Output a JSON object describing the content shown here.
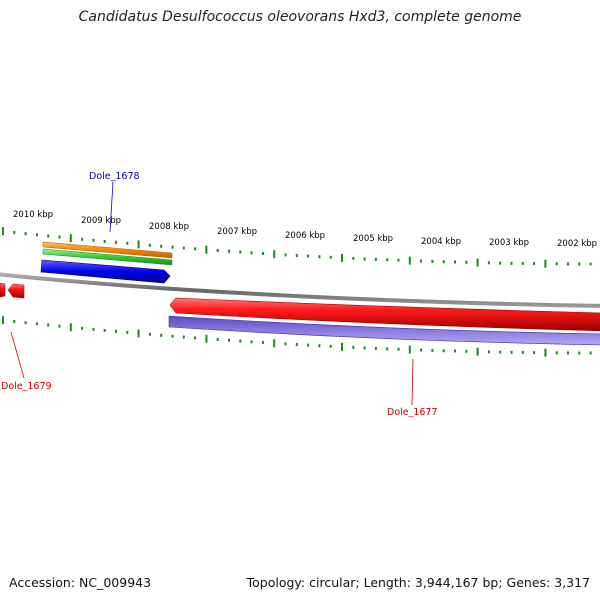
{
  "title": "Candidatus Desulfococcus oleovorans Hxd3, complete genome",
  "scale_labels": [
    "2010 kbp",
    "2009 kbp",
    "2008 kbp",
    "2007 kbp",
    "2006 kbp",
    "2005 kbp",
    "2004 kbp",
    "2003 kbp",
    "2002 kbp"
  ],
  "genes": [
    {
      "name": "Dole_1678",
      "color": "#0000cc"
    },
    {
      "name": "Dole_1679",
      "color": "#cc0000"
    },
    {
      "name": "Dole_1677",
      "color": "#cc0000"
    }
  ],
  "footer": {
    "accession": "Accession: NC_009943",
    "summary": "Topology: circular; Length: 3,944,167 bp; Genes: 3,317"
  },
  "colors": {
    "forward_orange": "#f08a00",
    "forward_green": "#33cc33",
    "forward_blue": "#0000ee",
    "reverse_red": "#ee0000",
    "reverse_purple": "#6a5acd",
    "backbone": "#888888",
    "tick": "#1a8a1a"
  }
}
